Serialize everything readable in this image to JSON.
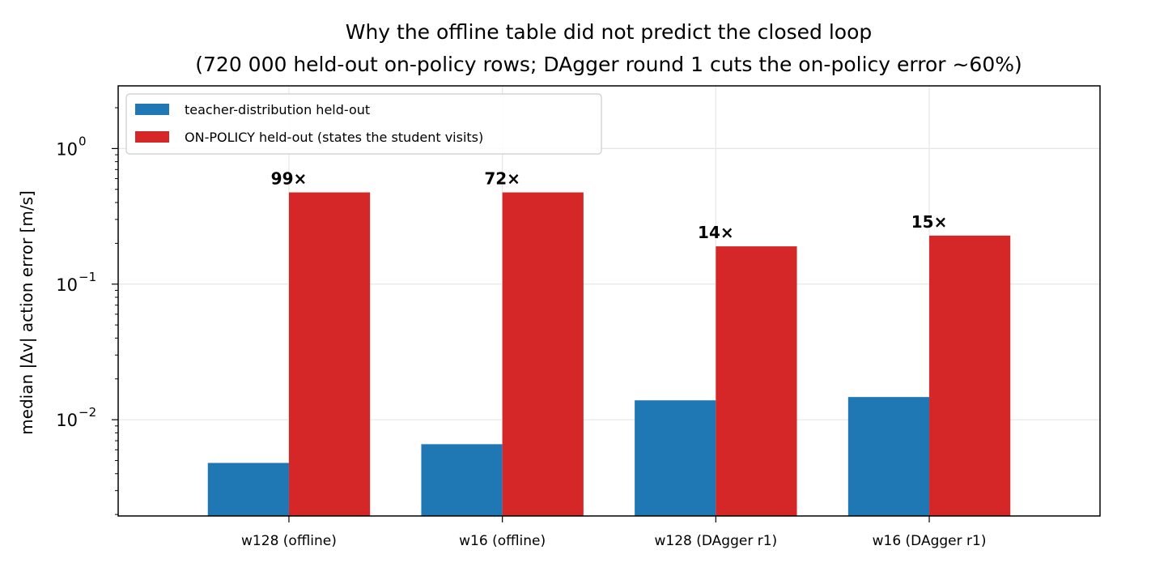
{
  "chart_data": {
    "type": "bar",
    "title": "Why the offline table did not predict the closed loop",
    "subtitle": "(720 000 held-out on-policy rows; DAgger round 1 cuts the on-policy error ~60%)",
    "xlabel": "",
    "ylabel": "median |Δv| action error [m/s]",
    "y_scale": "log",
    "ylim": [
      0.00195,
      2.9
    ],
    "grid": true,
    "legend_position": "top-left",
    "categories": [
      "w128 (offline)",
      "w16 (offline)",
      "w128 (DAgger r1)",
      "w16 (DAgger r1)"
    ],
    "series": [
      {
        "name": "teacher-distribution held-out",
        "color": "#1f77b4",
        "values": [
          0.0048,
          0.0066,
          0.0139,
          0.0147
        ]
      },
      {
        "name": "ON-POLICY held-out (states the student visits)",
        "color": "#d62728",
        "values": [
          0.475,
          0.475,
          0.19,
          0.228
        ]
      }
    ],
    "annotations": [
      "99×",
      "72×",
      "14×",
      "15×"
    ],
    "y_ticks": [
      {
        "value": 0.01,
        "base": "10",
        "exp": "−2"
      },
      {
        "value": 0.1,
        "base": "10",
        "exp": "−1"
      },
      {
        "value": 1,
        "base": "10",
        "exp": "0"
      }
    ]
  }
}
